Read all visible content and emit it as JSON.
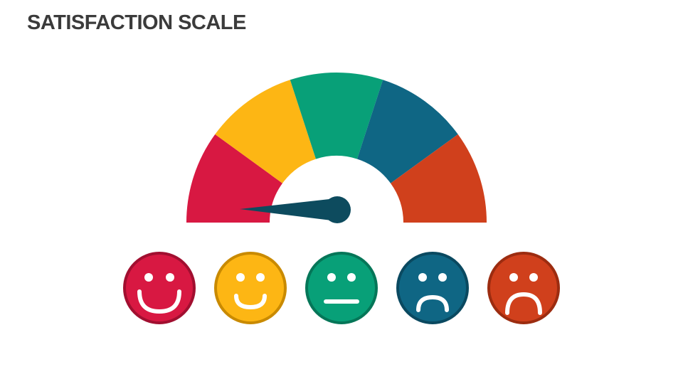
{
  "header": {
    "title": "SATISFACTION SCALE"
  }
}
